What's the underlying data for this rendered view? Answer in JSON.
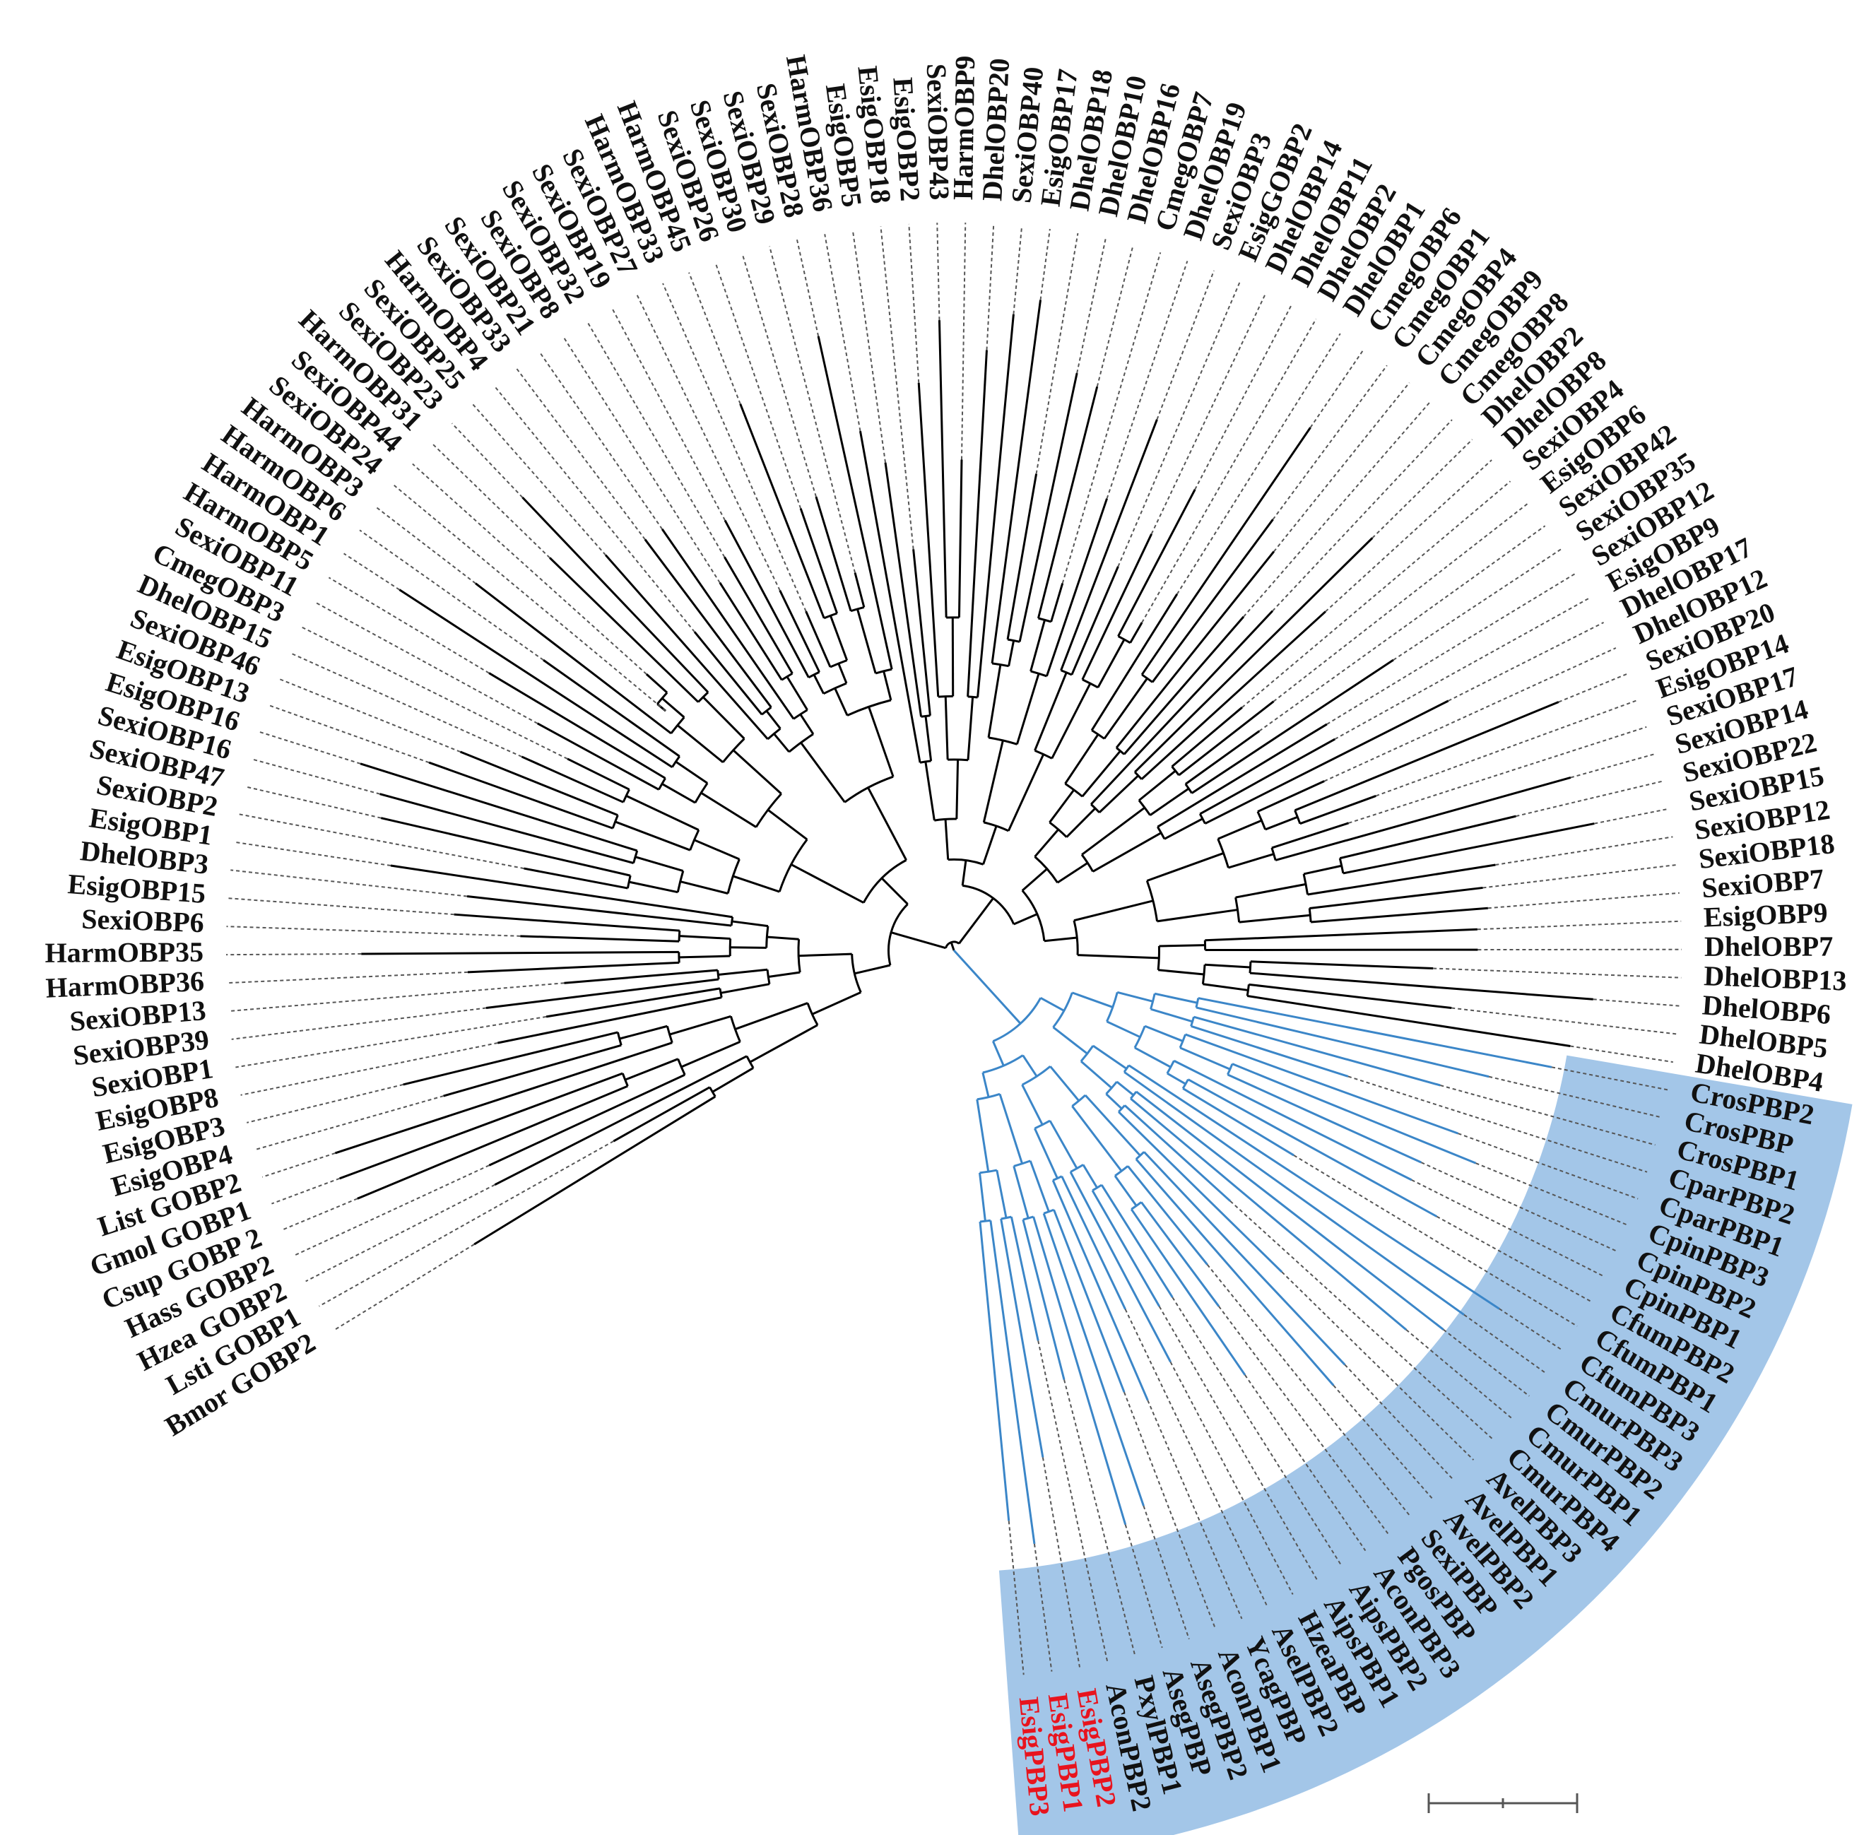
{
  "tree": {
    "leaves_clockwise": [
      "Bmor GOBP2",
      "Lsti GOBP1",
      "Hzea GOBP2",
      "Hass GOBP2",
      "Csup GOBP 2",
      "Gmol GOBP1",
      "List GOBP2",
      "EsigOBP4",
      "EsigOBP3",
      "EsigOBP8",
      "SexiOBP1",
      "SexiOBP39",
      "SexiOBP13",
      "HarmOBP36",
      "HarmOBP35",
      "SexiOBP6",
      "EsigOBP15",
      "DhelOBP3",
      "EsigOBP1",
      "SexiOBP2",
      "SexiOBP47",
      "SexiOBP16",
      "EsigOBP16",
      "EsigOBP13",
      "SexiOBP46",
      "DhelOBP15",
      "CmegOBP3",
      "SexiOBP11",
      "HarmOBP5",
      "HarmOBP1",
      "HarmOBP6",
      "HarmOBP3",
      "SexiOBP24",
      "SexiOBP44",
      "HarmOBP31",
      "SexiOBP23",
      "SexiOBP25",
      "HarmOBP4",
      "SexiOBP33",
      "SexiOBP21",
      "SexiOBP8",
      "SexiOBP32",
      "SexiOBP19",
      "SexiOBP27",
      "HarmOBP33",
      "HarmOBP45",
      "SexiOBP26",
      "SexiOBP30",
      "SexiOBP29",
      "SexiOBP28",
      "HarmOBP36",
      "EsigOBP5",
      "EsigOBP18",
      "EsigOBP2",
      "SexiOBP43",
      "HarmOBP9",
      "DhelOBP20",
      "SexiOBP40",
      "EsigOBP17",
      "DhelOBP18",
      "DhelOBP10",
      "DhelOBP16",
      "CmegOBP7",
      "DhelOBP19",
      "SexiOBP3",
      "EsigGOBP2",
      "DhelOBP14",
      "DhelOBP11",
      "DhelOBP2",
      "DhelOBP1",
      "CmegOBP6",
      "CmegOBP1",
      "CmegOBP4",
      "CmegOBP9",
      "CmegOBP8",
      "DhelOBP2",
      "DhelOBP8",
      "SexiOBP4",
      "EsigOBP6",
      "SexiOBP42",
      "SexiOBP35",
      "SexiOBP12",
      "EsigOBP9",
      "DhelOBP17",
      "DhelOBP12",
      "SexiOBP20",
      "EsigOBP14",
      "SexiOBP17",
      "SexiOBP14",
      "SexiOBP22",
      "SexiOBP15",
      "SexiOBP12",
      "SexiOBP18",
      "SexiOBP7",
      "EsigOBP9",
      "DhelOBP7",
      "DhelOBP13",
      "DhelOBP6",
      "DhelOBP5",
      "DhelOBP4",
      "CrosPBP2",
      "CrosPBP",
      "CrosPBP1",
      "CparPBP2",
      "CparPBP1",
      "CpinPBP3",
      "CpinPBP2",
      "CpinPBP1",
      "CfumPBP2",
      "CfumPBP1",
      "CfumPBP3",
      "CmurPBP3",
      "CmurPBP2",
      "CmurPBP1",
      "CmurPBP4",
      "AvelPBP3",
      "AvelPBP1",
      "AvelPBP2",
      "SexiPBP",
      "PgosPBP",
      "AconPBP3",
      "AipsPBP2",
      "AipsPBP1",
      "HzeaPBP",
      "AselPBP2",
      "YcagPBP",
      "AconPBP1",
      "AsegPBP2",
      "AsegPBP",
      "PxylPBP1",
      "AconPBP2",
      "EsigPBP2",
      "EsigPBP1",
      "EsigPBP3"
    ],
    "highlighted_leaves": [
      "EsigPBP2",
      "EsigPBP1",
      "EsigPBP3"
    ],
    "pbp_clade_range": [
      "CrosPBP2",
      "EsigPBP3"
    ],
    "colors": {
      "pbp_branch": "#3b86c8",
      "pbp_wedge": "#a3c6e8",
      "highlight": "#e8141e",
      "branch": "#000000"
    }
  }
}
